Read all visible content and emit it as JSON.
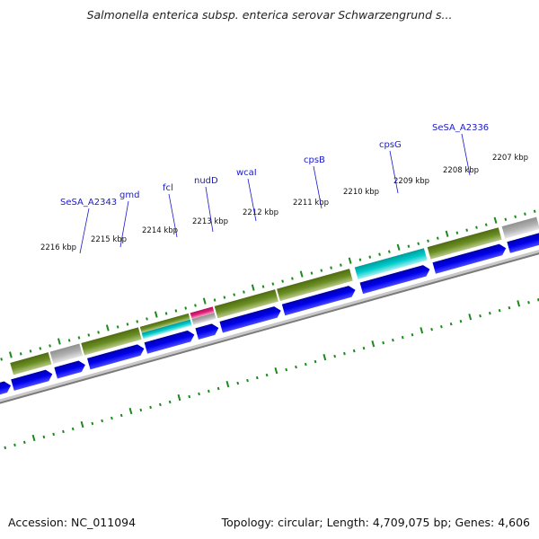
{
  "title": "Salmonella enterica subsp. enterica serovar Schwarzengrund s...",
  "footer": {
    "accession": "Accession: NC_011094",
    "genome_info": "Topology: circular; Length: 4,709,075 bp; Genes: 4,606"
  },
  "colors": {
    "tick": "#1a8a1a",
    "backbone": "#8a8a8a",
    "strand_forward_cds": "#0000ee",
    "label_blue": "#1a1acc",
    "olive": "#6b8e23",
    "cyan": "#00cccc",
    "gray": "#b0b0b0",
    "magenta": "#e0207a"
  },
  "scale_labels": [
    "2216 kbp",
    "2215 kbp",
    "2214 kbp",
    "2213 kbp",
    "2212 kbp",
    "2211 kbp",
    "2210 kbp",
    "2209 kbp",
    "2208 kbp",
    "2207 kbp"
  ],
  "gene_labels": [
    "SeSA_A2343",
    "gmd",
    "fcl",
    "nudD",
    "wcaI",
    "cpsB",
    "cpsG",
    "SeSA_A2336"
  ]
}
